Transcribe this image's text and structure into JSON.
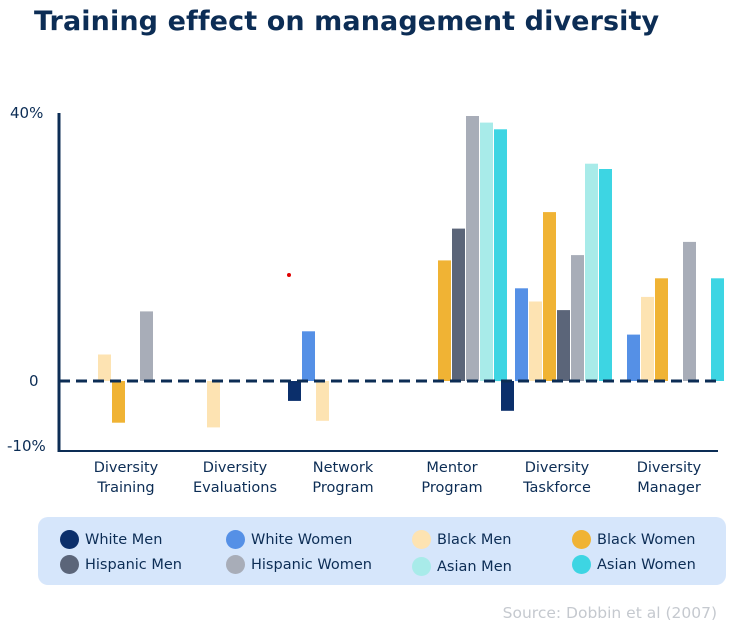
{
  "title": "Training effect on management diversity",
  "source": "Source: Dobbin et al (2007)",
  "chart_data": {
    "type": "bar",
    "title": "Training effect on management diversity",
    "ylim": [
      -10,
      40
    ],
    "y_ticks": [
      "40%",
      "0",
      "-10%"
    ],
    "y_tick_values": [
      40,
      0,
      -10
    ],
    "categories": [
      [
        "Diversity",
        "Training"
      ],
      [
        "Diversity",
        "Evaluations"
      ],
      [
        "Network",
        "Program"
      ],
      [
        "Mentor",
        "Program"
      ],
      [
        "Diversity",
        "Taskforce"
      ],
      [
        "Diversity",
        "Manager"
      ]
    ],
    "legend_placement": "bottom",
    "grid": false,
    "zero_line": "dashed",
    "series": [
      {
        "name": "White Men",
        "color": "#0b2f6b",
        "values": [
          null,
          null,
          -3,
          null,
          -4.5,
          null
        ]
      },
      {
        "name": "White Women",
        "color": "#5590e6",
        "values": [
          null,
          null,
          7.5,
          null,
          14,
          7
        ]
      },
      {
        "name": "Black Men",
        "color": "#fde3b2",
        "values": [
          4,
          -7,
          -6,
          null,
          12,
          12.7
        ]
      },
      {
        "name": "Black Women",
        "color": "#f0b334",
        "values": [
          -6.3,
          null,
          null,
          18.2,
          25.5,
          15.5
        ]
      },
      {
        "name": "Hispanic Men",
        "color": "#5b6579",
        "values": [
          null,
          null,
          null,
          23,
          10.7,
          null
        ]
      },
      {
        "name": "Hispanic Women",
        "color": "#a8adb8",
        "values": [
          10.5,
          null,
          null,
          40,
          19,
          21
        ]
      },
      {
        "name": "Asian Men",
        "color": "#a8ebe9",
        "values": [
          null,
          null,
          null,
          39,
          32.8,
          null
        ]
      },
      {
        "name": "Asian Women",
        "color": "#3dd5e3",
        "values": [
          null,
          null,
          null,
          38,
          32,
          15.5
        ]
      }
    ]
  }
}
